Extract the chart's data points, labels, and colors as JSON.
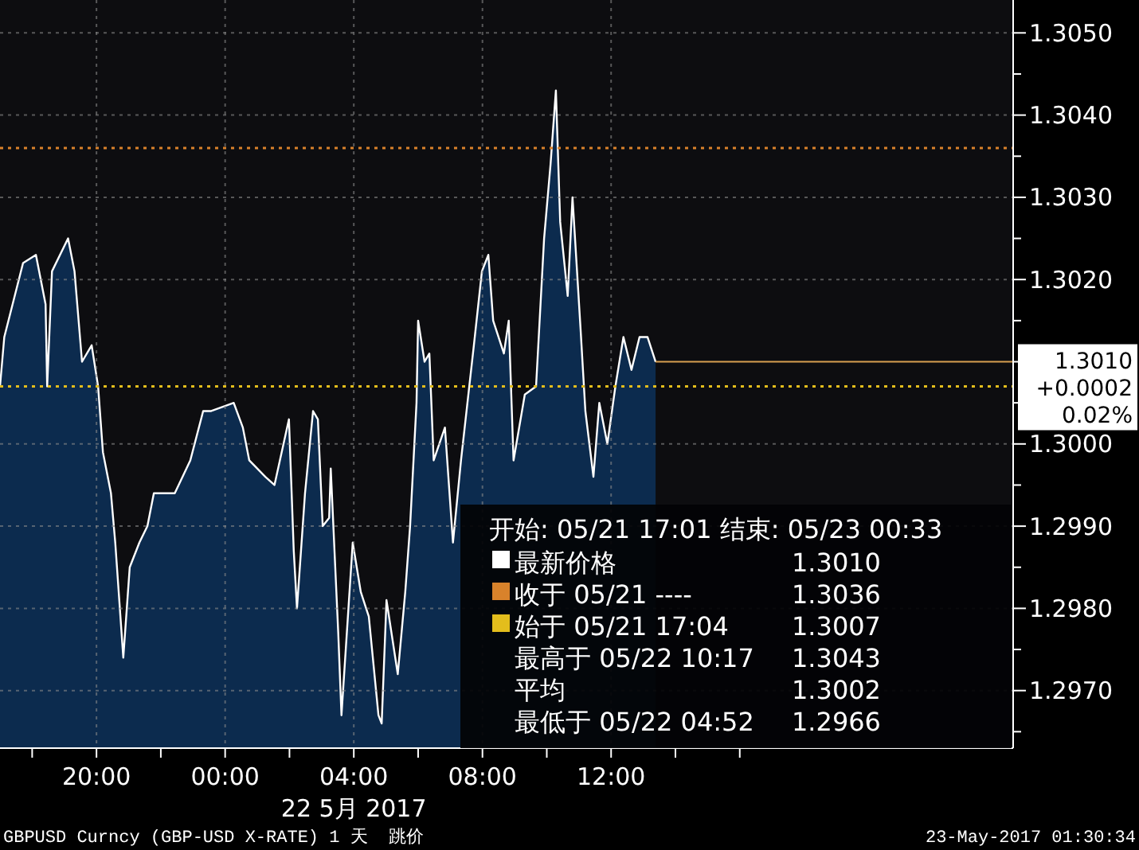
{
  "chart_data": {
    "type": "area",
    "xlabel": "22 5月 2017",
    "x": [
      "2017-05-21T17:00",
      "2017-05-21T17:08",
      "2017-05-21T17:43",
      "2017-05-21T18:07",
      "2017-05-21T18:25",
      "2017-05-21T18:28",
      "2017-05-21T18:37",
      "2017-05-21T19:07",
      "2017-05-21T19:19",
      "2017-05-21T19:33",
      "2017-05-21T19:51",
      "2017-05-21T20:03",
      "2017-05-21T20:12",
      "2017-05-21T20:27",
      "2017-05-21T20:35",
      "2017-05-21T20:50",
      "2017-05-21T21:02",
      "2017-05-21T21:20",
      "2017-05-21T21:35",
      "2017-05-21T21:47",
      "2017-05-21T22:26",
      "2017-05-21T22:55",
      "2017-05-21T23:19",
      "2017-05-21T23:34",
      "2017-05-22T00:16",
      "2017-05-22T00:33",
      "2017-05-22T00:45",
      "2017-05-22T01:15",
      "2017-05-22T01:32",
      "2017-05-22T01:59",
      "2017-05-22T02:08",
      "2017-05-22T02:14",
      "2017-05-22T02:29",
      "2017-05-22T02:44",
      "2017-05-22T02:53",
      "2017-05-22T03:02",
      "2017-05-22T03:14",
      "2017-05-22T03:17",
      "2017-05-22T03:31",
      "2017-05-22T03:37",
      "2017-05-22T03:58",
      "2017-05-22T04:13",
      "2017-05-22T04:28",
      "2017-05-22T04:46",
      "2017-05-22T04:52",
      "2017-05-22T05:01",
      "2017-05-22T05:22",
      "2017-05-22T05:36",
      "2017-05-22T05:45",
      "2017-05-22T05:57",
      "2017-05-22T06:00",
      "2017-05-22T06:12",
      "2017-05-22T06:21",
      "2017-05-22T06:29",
      "2017-05-22T06:50",
      "2017-05-22T07:05",
      "2017-05-22T07:20",
      "2017-05-22T07:44",
      "2017-05-22T07:59",
      "2017-05-22T08:11",
      "2017-05-22T08:20",
      "2017-05-22T08:40",
      "2017-05-22T08:49",
      "2017-05-22T08:58",
      "2017-05-22T09:19",
      "2017-05-22T09:40",
      "2017-05-22T09:55",
      "2017-05-22T10:07",
      "2017-05-22T10:17",
      "2017-05-22T10:25",
      "2017-05-22T10:39",
      "2017-05-22T10:48",
      "2017-05-22T11:03",
      "2017-05-22T11:12",
      "2017-05-22T11:27",
      "2017-05-22T11:38",
      "2017-05-22T11:53",
      "2017-05-22T12:08",
      "2017-05-22T12:23",
      "2017-05-22T12:38",
      "2017-05-22T12:53",
      "2017-05-22T13:08",
      "2017-05-22T13:23"
    ],
    "series": [
      {
        "color": "#0c2b4e",
        "values": [
          1.3007,
          1.3013,
          1.3022,
          1.3023,
          1.3017,
          1.3007,
          1.3021,
          1.3025,
          1.3021,
          1.301,
          1.3012,
          1.3007,
          1.2999,
          1.2994,
          1.2988,
          1.2974,
          1.2985,
          1.2988,
          1.299,
          1.2994,
          1.2994,
          1.2998,
          1.3004,
          1.3004,
          1.3005,
          1.3002,
          1.2998,
          1.2996,
          1.2995,
          1.3003,
          1.2987,
          1.298,
          1.2994,
          1.3004,
          1.3003,
          1.299,
          1.2991,
          1.2997,
          1.2977,
          1.2967,
          1.2988,
          1.2982,
          1.2979,
          1.2967,
          1.2966,
          1.2981,
          1.2972,
          1.2982,
          1.299,
          1.3005,
          1.3015,
          1.301,
          1.3011,
          1.2998,
          1.3002,
          1.2988,
          1.2998,
          1.3012,
          1.3021,
          1.3023,
          1.3015,
          1.3011,
          1.3015,
          1.2998,
          1.3006,
          1.3007,
          1.3025,
          1.3034,
          1.3043,
          1.3027,
          1.3018,
          1.303,
          1.3014,
          1.3004,
          1.2996,
          1.3005,
          1.3,
          1.3007,
          1.3013,
          1.3009,
          1.3013,
          1.3013,
          1.301
        ]
      }
    ],
    "xlim": [
      "2017-05-21T17:00",
      "2017-05-23T00:30"
    ],
    "xticks": [
      {
        "value": "2017-05-21T18:00",
        "label": null
      },
      {
        "value": "2017-05-21T20:00",
        "label": "20:00"
      },
      {
        "value": "2017-05-21T22:00",
        "label": null
      },
      {
        "value": "2017-05-22T00:00",
        "label": "00:00"
      },
      {
        "value": "2017-05-22T02:00",
        "label": null
      },
      {
        "value": "2017-05-22T04:00",
        "label": "04:00"
      },
      {
        "value": "2017-05-22T06:00",
        "label": null
      },
      {
        "value": "2017-05-22T08:00",
        "label": "08:00"
      },
      {
        "value": "2017-05-22T10:00",
        "label": null
      },
      {
        "value": "2017-05-22T12:00",
        "label": "12:00"
      },
      {
        "value": "2017-05-22T14:00",
        "label": null
      },
      {
        "value": "2017-05-22T16:00",
        "label": null
      }
    ],
    "ylim": [
      1.2963,
      1.3054
    ],
    "yticks": [
      {
        "value": 1.2965,
        "label": null
      },
      {
        "value": 1.297,
        "label": "1.2970"
      },
      {
        "value": 1.2975,
        "label": null
      },
      {
        "value": 1.298,
        "label": "1.2980"
      },
      {
        "value": 1.2985,
        "label": null
      },
      {
        "value": 1.299,
        "label": "1.2990"
      },
      {
        "value": 1.2995,
        "label": null
      },
      {
        "value": 1.3,
        "label": "1.3000"
      },
      {
        "value": 1.3005,
        "label": null
      },
      {
        "value": 1.301,
        "label": null
      },
      {
        "value": 1.3015,
        "label": null
      },
      {
        "value": 1.302,
        "label": "1.3020"
      },
      {
        "value": 1.3025,
        "label": null
      },
      {
        "value": 1.303,
        "label": "1.3030"
      },
      {
        "value": 1.3035,
        "label": null
      },
      {
        "value": 1.304,
        "label": "1.3040"
      },
      {
        "value": 1.3045,
        "label": null
      },
      {
        "value": 1.305,
        "label": "1.3050"
      }
    ],
    "grid": true,
    "ref_lines": [
      {
        "axis": "y",
        "value": 1.3036,
        "color": "#d9822b",
        "line_style": "dotted"
      },
      {
        "axis": "y",
        "value": 1.3007,
        "color": "#e3bd1c",
        "line_style": "dotted"
      },
      {
        "axis": "y",
        "value": 1.301,
        "color": "#d8a050",
        "line_style": "solid"
      }
    ],
    "annotations": [
      "开始: 05/21 17:01 结束: 05/23 00:33",
      "最新价格",
      "1.3010",
      "收于 05/21 ----",
      "1.3036",
      "始于 05/21 17:04",
      "1.3007",
      "最高于 05/22 10:17",
      "1.3043",
      "平均",
      "1.3002",
      "最低于 05/22 04:52",
      "1.2966",
      "1.3010",
      "+0.0002",
      "0.02%",
      "GBPUSD Curncy (GBP-USD X-RATE) 1 天  跳价",
      "23-May-2017 01:30:34"
    ]
  }
}
